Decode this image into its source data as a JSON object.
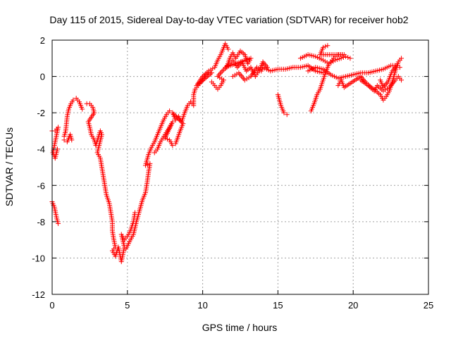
{
  "chart_data": {
    "type": "scatter",
    "title": "Day 115 of 2015, Sidereal Day-to-day VTEC variation (SDTVAR) for receiver hob2",
    "xlabel": "GPS time / hours",
    "ylabel": "SDTVAR / TECUs",
    "xlim": [
      0,
      25
    ],
    "ylim": [
      -12,
      2
    ],
    "x_ticks": [
      "0",
      "5",
      "10",
      "15",
      "20",
      "25"
    ],
    "y_ticks": [
      "2",
      "0",
      "-2",
      "-4",
      "-6",
      "-8",
      "-10",
      "-12"
    ],
    "grid": true,
    "marker": "plus",
    "color": "#ff0000",
    "series": [
      {
        "values": [
          [
            0.0,
            -3.0
          ],
          [
            0.2,
            -3.0
          ],
          [
            0.4,
            -2.8
          ],
          [
            0.05,
            -4.2
          ],
          [
            0.2,
            -4.5
          ],
          [
            0.35,
            -4.0
          ],
          [
            0.0,
            -6.9
          ],
          [
            0.15,
            -7.2
          ],
          [
            0.3,
            -7.8
          ],
          [
            0.4,
            -8.1
          ],
          [
            0.8,
            -3.3
          ],
          [
            0.9,
            -3.0
          ],
          [
            0.95,
            -2.6
          ],
          [
            1.0,
            -2.2
          ],
          [
            1.1,
            -1.8
          ],
          [
            1.25,
            -1.5
          ],
          [
            1.4,
            -1.3
          ],
          [
            1.6,
            -1.2
          ],
          [
            1.8,
            -1.4
          ],
          [
            2.0,
            -1.8
          ],
          [
            0.8,
            -3.5
          ],
          [
            1.0,
            -3.6
          ],
          [
            1.2,
            -3.2
          ],
          [
            1.3,
            -3.5
          ],
          [
            2.3,
            -1.5
          ],
          [
            2.5,
            -1.5
          ],
          [
            2.7,
            -1.7
          ],
          [
            2.8,
            -2.0
          ],
          [
            2.4,
            -2.5
          ],
          [
            2.5,
            -2.8
          ],
          [
            2.6,
            -3.2
          ],
          [
            2.8,
            -3.5
          ],
          [
            2.9,
            -3.8
          ],
          [
            3.2,
            -3.0
          ],
          [
            3.3,
            -3.2
          ],
          [
            3.0,
            -4.2
          ],
          [
            3.2,
            -4.5
          ],
          [
            3.3,
            -5.0
          ],
          [
            3.4,
            -5.5
          ],
          [
            3.5,
            -6.0
          ],
          [
            3.6,
            -6.5
          ],
          [
            3.8,
            -7.0
          ],
          [
            3.9,
            -7.5
          ],
          [
            4.0,
            -8.0
          ],
          [
            4.0,
            -8.5
          ],
          [
            4.1,
            -9.0
          ],
          [
            4.2,
            -9.4
          ],
          [
            4.0,
            -9.6
          ],
          [
            4.2,
            -9.9
          ],
          [
            4.4,
            -9.4
          ],
          [
            4.6,
            -10.2
          ],
          [
            4.7,
            -9.8
          ],
          [
            4.8,
            -9.4
          ],
          [
            4.6,
            -8.7
          ],
          [
            4.8,
            -9.0
          ],
          [
            5.0,
            -8.8
          ],
          [
            5.2,
            -8.5
          ],
          [
            5.4,
            -8.0
          ],
          [
            5.5,
            -7.5
          ],
          [
            4.9,
            -9.5
          ],
          [
            5.2,
            -9.0
          ],
          [
            5.4,
            -8.7
          ],
          [
            5.6,
            -8.0
          ],
          [
            5.8,
            -7.4
          ],
          [
            6.0,
            -6.8
          ],
          [
            6.2,
            -6.4
          ],
          [
            6.3,
            -5.9
          ],
          [
            6.4,
            -5.3
          ],
          [
            6.5,
            -4.8
          ],
          [
            6.2,
            -4.9
          ],
          [
            6.4,
            -4.3
          ],
          [
            6.6,
            -3.9
          ],
          [
            6.8,
            -3.6
          ],
          [
            7.0,
            -3.2
          ],
          [
            7.2,
            -2.8
          ],
          [
            7.4,
            -2.4
          ],
          [
            7.6,
            -2.1
          ],
          [
            7.8,
            -1.9
          ],
          [
            6.8,
            -4.2
          ],
          [
            7.0,
            -4.0
          ],
          [
            7.2,
            -3.6
          ],
          [
            7.5,
            -3.2
          ],
          [
            7.8,
            -2.8
          ],
          [
            8.0,
            -2.5
          ],
          [
            7.5,
            -3.4
          ],
          [
            7.8,
            -3.5
          ],
          [
            8.0,
            -3.8
          ],
          [
            8.2,
            -3.7
          ],
          [
            8.5,
            -3.0
          ],
          [
            8.7,
            -2.6
          ],
          [
            8.0,
            -2.0
          ],
          [
            8.2,
            -2.4
          ],
          [
            8.4,
            -2.2
          ],
          [
            8.6,
            -2.5
          ],
          [
            8.8,
            -2.0
          ],
          [
            9.0,
            -1.6
          ],
          [
            9.2,
            -1.4
          ],
          [
            9.4,
            -1.6
          ],
          [
            9.4,
            -1.0
          ],
          [
            9.5,
            -0.7
          ],
          [
            9.7,
            -0.5
          ],
          [
            9.9,
            -0.3
          ],
          [
            10.0,
            -0.2
          ],
          [
            10.2,
            0.1
          ],
          [
            10.4,
            0.2
          ],
          [
            10.6,
            0.2
          ],
          [
            9.6,
            -0.5
          ],
          [
            10.0,
            0.0
          ],
          [
            10.4,
            0.3
          ],
          [
            10.8,
            0.5
          ],
          [
            11.0,
            0.9
          ],
          [
            11.2,
            1.2
          ],
          [
            11.4,
            1.6
          ],
          [
            11.5,
            1.8
          ],
          [
            11.7,
            1.5
          ],
          [
            10.6,
            -0.3
          ],
          [
            10.8,
            -0.5
          ],
          [
            11.0,
            -0.7
          ],
          [
            11.2,
            -0.5
          ],
          [
            11.4,
            -0.2
          ],
          [
            11.0,
            0.0
          ],
          [
            11.3,
            0.3
          ],
          [
            11.6,
            0.5
          ],
          [
            11.8,
            1.0
          ],
          [
            12.0,
            1.3
          ],
          [
            12.2,
            1.0
          ],
          [
            12.5,
            1.4
          ],
          [
            12.8,
            1.2
          ],
          [
            13.0,
            0.7
          ],
          [
            13.2,
            1.0
          ],
          [
            11.5,
            0.5
          ],
          [
            11.8,
            0.7
          ],
          [
            12.0,
            0.9
          ],
          [
            12.3,
            0.5
          ],
          [
            12.6,
            0.8
          ],
          [
            12.9,
            0.3
          ],
          [
            13.2,
            0.5
          ],
          [
            13.5,
            0.0
          ],
          [
            13.8,
            0.4
          ],
          [
            14.0,
            0.8
          ],
          [
            14.3,
            0.5
          ],
          [
            12.0,
            0.0
          ],
          [
            12.4,
            0.2
          ],
          [
            12.8,
            -0.2
          ],
          [
            13.2,
            0.0
          ],
          [
            13.6,
            0.5
          ],
          [
            13.9,
            0.3
          ],
          [
            14.0,
            0.5
          ],
          [
            14.5,
            0.3
          ],
          [
            15.0,
            0.4
          ],
          [
            15.5,
            0.4
          ],
          [
            16.0,
            0.5
          ],
          [
            16.5,
            0.5
          ],
          [
            17.0,
            0.6
          ],
          [
            17.5,
            0.3
          ],
          [
            18.0,
            0.2
          ],
          [
            15.0,
            -1.0
          ],
          [
            15.2,
            -1.6
          ],
          [
            15.4,
            -2.0
          ],
          [
            15.6,
            -2.1
          ],
          [
            16.5,
            1.0
          ],
          [
            17.0,
            1.2
          ],
          [
            17.5,
            1.1
          ],
          [
            18.0,
            0.9
          ],
          [
            18.4,
            0.7
          ],
          [
            18.8,
            0.9
          ],
          [
            19.2,
            1.0
          ],
          [
            19.5,
            1.1
          ],
          [
            19.8,
            1.0
          ],
          [
            17.0,
            0.3
          ],
          [
            17.5,
            0.5
          ],
          [
            18.0,
            0.4
          ],
          [
            18.5,
            0.1
          ],
          [
            19.0,
            -0.1
          ],
          [
            19.5,
            0.0
          ],
          [
            20.0,
            0.1
          ],
          [
            20.5,
            0.2
          ],
          [
            21.0,
            0.2
          ],
          [
            21.5,
            0.3
          ],
          [
            22.0,
            0.4
          ],
          [
            22.5,
            0.6
          ],
          [
            22.9,
            0.6
          ],
          [
            17.2,
            -1.9
          ],
          [
            17.4,
            -1.5
          ],
          [
            17.6,
            -1.0
          ],
          [
            17.8,
            -0.7
          ],
          [
            18.0,
            -0.2
          ],
          [
            18.2,
            0.3
          ],
          [
            18.4,
            0.7
          ],
          [
            18.6,
            0.9
          ],
          [
            18.8,
            1.1
          ],
          [
            19.0,
            1.2
          ],
          [
            19.4,
            1.2
          ],
          [
            17.8,
            1.2
          ],
          [
            18.0,
            1.6
          ],
          [
            18.3,
            1.7
          ],
          [
            19.0,
            -0.5
          ],
          [
            19.2,
            -0.2
          ],
          [
            19.4,
            -0.6
          ],
          [
            20.5,
            0.0
          ],
          [
            20.8,
            -0.3
          ],
          [
            21.2,
            -0.6
          ],
          [
            21.5,
            -0.8
          ],
          [
            21.8,
            -1.0
          ],
          [
            22.0,
            -1.3
          ],
          [
            22.2,
            -1.1
          ],
          [
            22.4,
            -0.8
          ],
          [
            22.6,
            -0.3
          ],
          [
            22.8,
            0.3
          ],
          [
            23.0,
            0.8
          ],
          [
            23.2,
            1.0
          ],
          [
            21.8,
            -0.2
          ],
          [
            22.0,
            -0.6
          ],
          [
            22.3,
            -0.3
          ],
          [
            22.6,
            0.3
          ],
          [
            22.9,
            0.6
          ],
          [
            23.1,
            0.5
          ],
          [
            20.5,
            -0.2
          ],
          [
            21.0,
            -0.5
          ],
          [
            21.4,
            -0.8
          ],
          [
            21.6,
            -0.5
          ],
          [
            22.0,
            -0.8
          ],
          [
            22.4,
            -0.6
          ],
          [
            22.8,
            -0.2
          ],
          [
            23.0,
            0.0
          ],
          [
            23.2,
            -0.2
          ]
        ]
      }
    ]
  }
}
